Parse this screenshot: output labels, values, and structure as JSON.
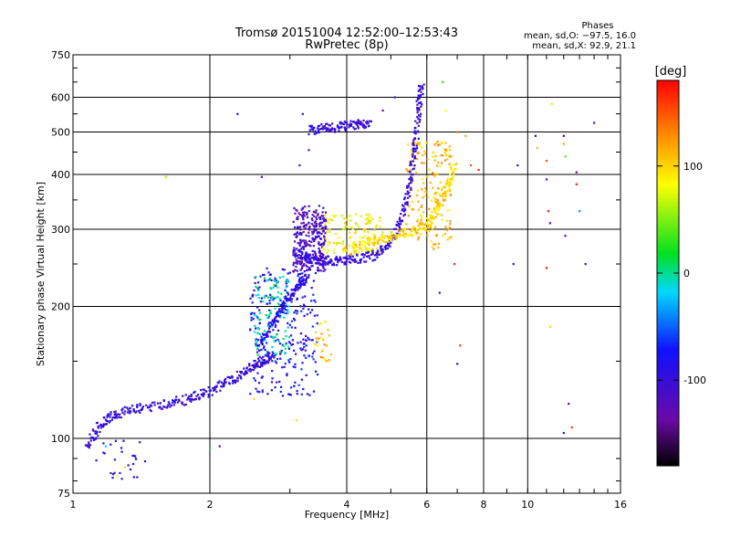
{
  "chart_data": {
    "type": "scatter",
    "title": "Tromsø 20151004 12:52:00–12:53:43",
    "subtitle": "RwPretec (8p)",
    "xlabel": "Frequency [MHz]",
    "ylabel": "Stationary phase Virtual Height [km]",
    "x_scale": "log",
    "y_scale": "log",
    "xlim": [
      1,
      16
    ],
    "ylim": [
      75,
      750
    ],
    "x_ticks": [
      1,
      2,
      4,
      6,
      8,
      10,
      16
    ],
    "y_ticks": [
      75,
      100,
      200,
      300,
      400,
      500,
      600,
      750
    ],
    "grid": true,
    "phases": {
      "title": "Phases",
      "line1": "mean, sd,O: −97.5, 16.0",
      "line2": "mean, sd,X:  92.9, 21.1"
    },
    "colorbar": {
      "label": "[deg]",
      "range": [
        -180,
        180
      ],
      "ticks": [
        100,
        0,
        -100
      ]
    },
    "series": [
      {
        "traces": [
          {
            "x": [
              1.07,
              1.15,
              1.25,
              1.4,
              1.6,
              1.8,
              2.0,
              2.2,
              2.4,
              2.6,
              2.75
            ],
            "y": [
              95,
              108,
              114,
              117,
              120,
              123,
              128,
              135,
              143,
              150,
              155
            ],
            "phase": -100
          },
          {
            "x": [
              2.55,
              2.7,
              2.85,
              3.0,
              3.15,
              3.25
            ],
            "y": [
              160,
              178,
              195,
              210,
              225,
              232
            ],
            "phase": -90
          },
          {
            "x": [
              3.1,
              3.3,
              3.55,
              3.85,
              4.2,
              4.6,
              5.0,
              5.3,
              5.5,
              5.65,
              5.75,
              5.85
            ],
            "y": [
              265,
              258,
              255,
              254,
              256,
              262,
              280,
              320,
              380,
              460,
              560,
              650
            ],
            "phase": -100
          },
          {
            "x": [
              4.0,
              4.5,
              5.0,
              5.5,
              6.0,
              6.3,
              6.6,
              6.9
            ],
            "y": [
              268,
              278,
              290,
              295,
              305,
              330,
              370,
              420
            ],
            "phase": 100
          },
          {
            "x": [
              3.3,
              3.6,
              3.9,
              4.2,
              4.5
            ],
            "y": [
              505,
              510,
              515,
              520,
              525
            ],
            "phase": -100
          }
        ],
        "clusters": [
          {
            "x": [
              3.05,
              3.6
            ],
            "y": [
              240,
              340
            ],
            "n": 280,
            "phase": -115
          },
          {
            "x": [
              2.45,
              3.45
            ],
            "y": [
              125,
              245
            ],
            "n": 260,
            "phase": -80
          },
          {
            "x": [
              2.5,
              3.0
            ],
            "y": [
              155,
              235
            ],
            "n": 110,
            "phase": -5
          },
          {
            "x": [
              3.55,
              4.8
            ],
            "y": [
              265,
              325
            ],
            "n": 120,
            "phase": 85
          },
          {
            "x": [
              5.4,
              6.8
            ],
            "y": [
              270,
              480
            ],
            "n": 170,
            "phase": 110
          },
          {
            "x": [
              3.4,
              3.7
            ],
            "y": [
              150,
              185
            ],
            "n": 25,
            "phase": 110
          },
          {
            "x": [
              1.12,
              1.45
            ],
            "y": [
              80,
              100
            ],
            "n": 28,
            "phase": -90
          }
        ],
        "scattered": [
          {
            "x": 1.6,
            "y": 395,
            "phase": 60
          },
          {
            "x": 2.3,
            "y": 550,
            "phase": -100
          },
          {
            "x": 2.6,
            "y": 395,
            "phase": -120
          },
          {
            "x": 3.2,
            "y": 550,
            "phase": -110
          },
          {
            "x": 3.3,
            "y": 455,
            "phase": -120
          },
          {
            "x": 3.15,
            "y": 420,
            "phase": -110
          },
          {
            "x": 4.8,
            "y": 560,
            "phase": -120
          },
          {
            "x": 5.1,
            "y": 600,
            "phase": -100
          },
          {
            "x": 6.5,
            "y": 650,
            "phase": 30
          },
          {
            "x": 6.6,
            "y": 560,
            "phase": 80
          },
          {
            "x": 7.0,
            "y": 500,
            "phase": 140
          },
          {
            "x": 7.3,
            "y": 490,
            "phase": 120
          },
          {
            "x": 7.5,
            "y": 420,
            "phase": 150
          },
          {
            "x": 7.8,
            "y": 410,
            "phase": 170
          },
          {
            "x": 6.4,
            "y": 215,
            "phase": -110
          },
          {
            "x": 6.3,
            "y": 290,
            "phase": 130
          },
          {
            "x": 6.9,
            "y": 250,
            "phase": 170
          },
          {
            "x": 7.1,
            "y": 163,
            "phase": 160
          },
          {
            "x": 7.0,
            "y": 148,
            "phase": -100
          },
          {
            "x": 9.3,
            "y": 250,
            "phase": -100
          },
          {
            "x": 9.5,
            "y": 420,
            "phase": -110
          },
          {
            "x": 10.5,
            "y": 460,
            "phase": 110
          },
          {
            "x": 10.4,
            "y": 490,
            "phase": -150
          },
          {
            "x": 11.3,
            "y": 580,
            "phase": 100
          },
          {
            "x": 11.0,
            "y": 430,
            "phase": 150
          },
          {
            "x": 11.0,
            "y": 390,
            "phase": -130
          },
          {
            "x": 11.1,
            "y": 330,
            "phase": 170
          },
          {
            "x": 11.2,
            "y": 310,
            "phase": -120
          },
          {
            "x": 11.0,
            "y": 245,
            "phase": 170
          },
          {
            "x": 11.2,
            "y": 180,
            "phase": 100
          },
          {
            "x": 12.0,
            "y": 490,
            "phase": -150
          },
          {
            "x": 12.0,
            "y": 470,
            "phase": 120
          },
          {
            "x": 12.1,
            "y": 440,
            "phase": 40
          },
          {
            "x": 12.1,
            "y": 290,
            "phase": -120
          },
          {
            "x": 12.3,
            "y": 120,
            "phase": -120
          },
          {
            "x": 12.5,
            "y": 106,
            "phase": 160
          },
          {
            "x": 12.0,
            "y": 103,
            "phase": -110
          },
          {
            "x": 12.8,
            "y": 405,
            "phase": -130
          },
          {
            "x": 12.8,
            "y": 380,
            "phase": 170
          },
          {
            "x": 13.0,
            "y": 330,
            "phase": -40
          },
          {
            "x": 13.4,
            "y": 250,
            "phase": -100
          },
          {
            "x": 14.0,
            "y": 525,
            "phase": -120
          },
          {
            "x": 2.0,
            "y": 95,
            "phase": 10
          },
          {
            "x": 1.25,
            "y": 82,
            "phase": 80
          },
          {
            "x": 1.3,
            "y": 86,
            "phase": 100
          },
          {
            "x": 1.18,
            "y": 96,
            "phase": -20
          },
          {
            "x": 2.5,
            "y": 123,
            "phase": 100
          },
          {
            "x": 3.1,
            "y": 110,
            "phase": 100
          },
          {
            "x": 2.1,
            "y": 96,
            "phase": -90
          }
        ]
      }
    ]
  }
}
